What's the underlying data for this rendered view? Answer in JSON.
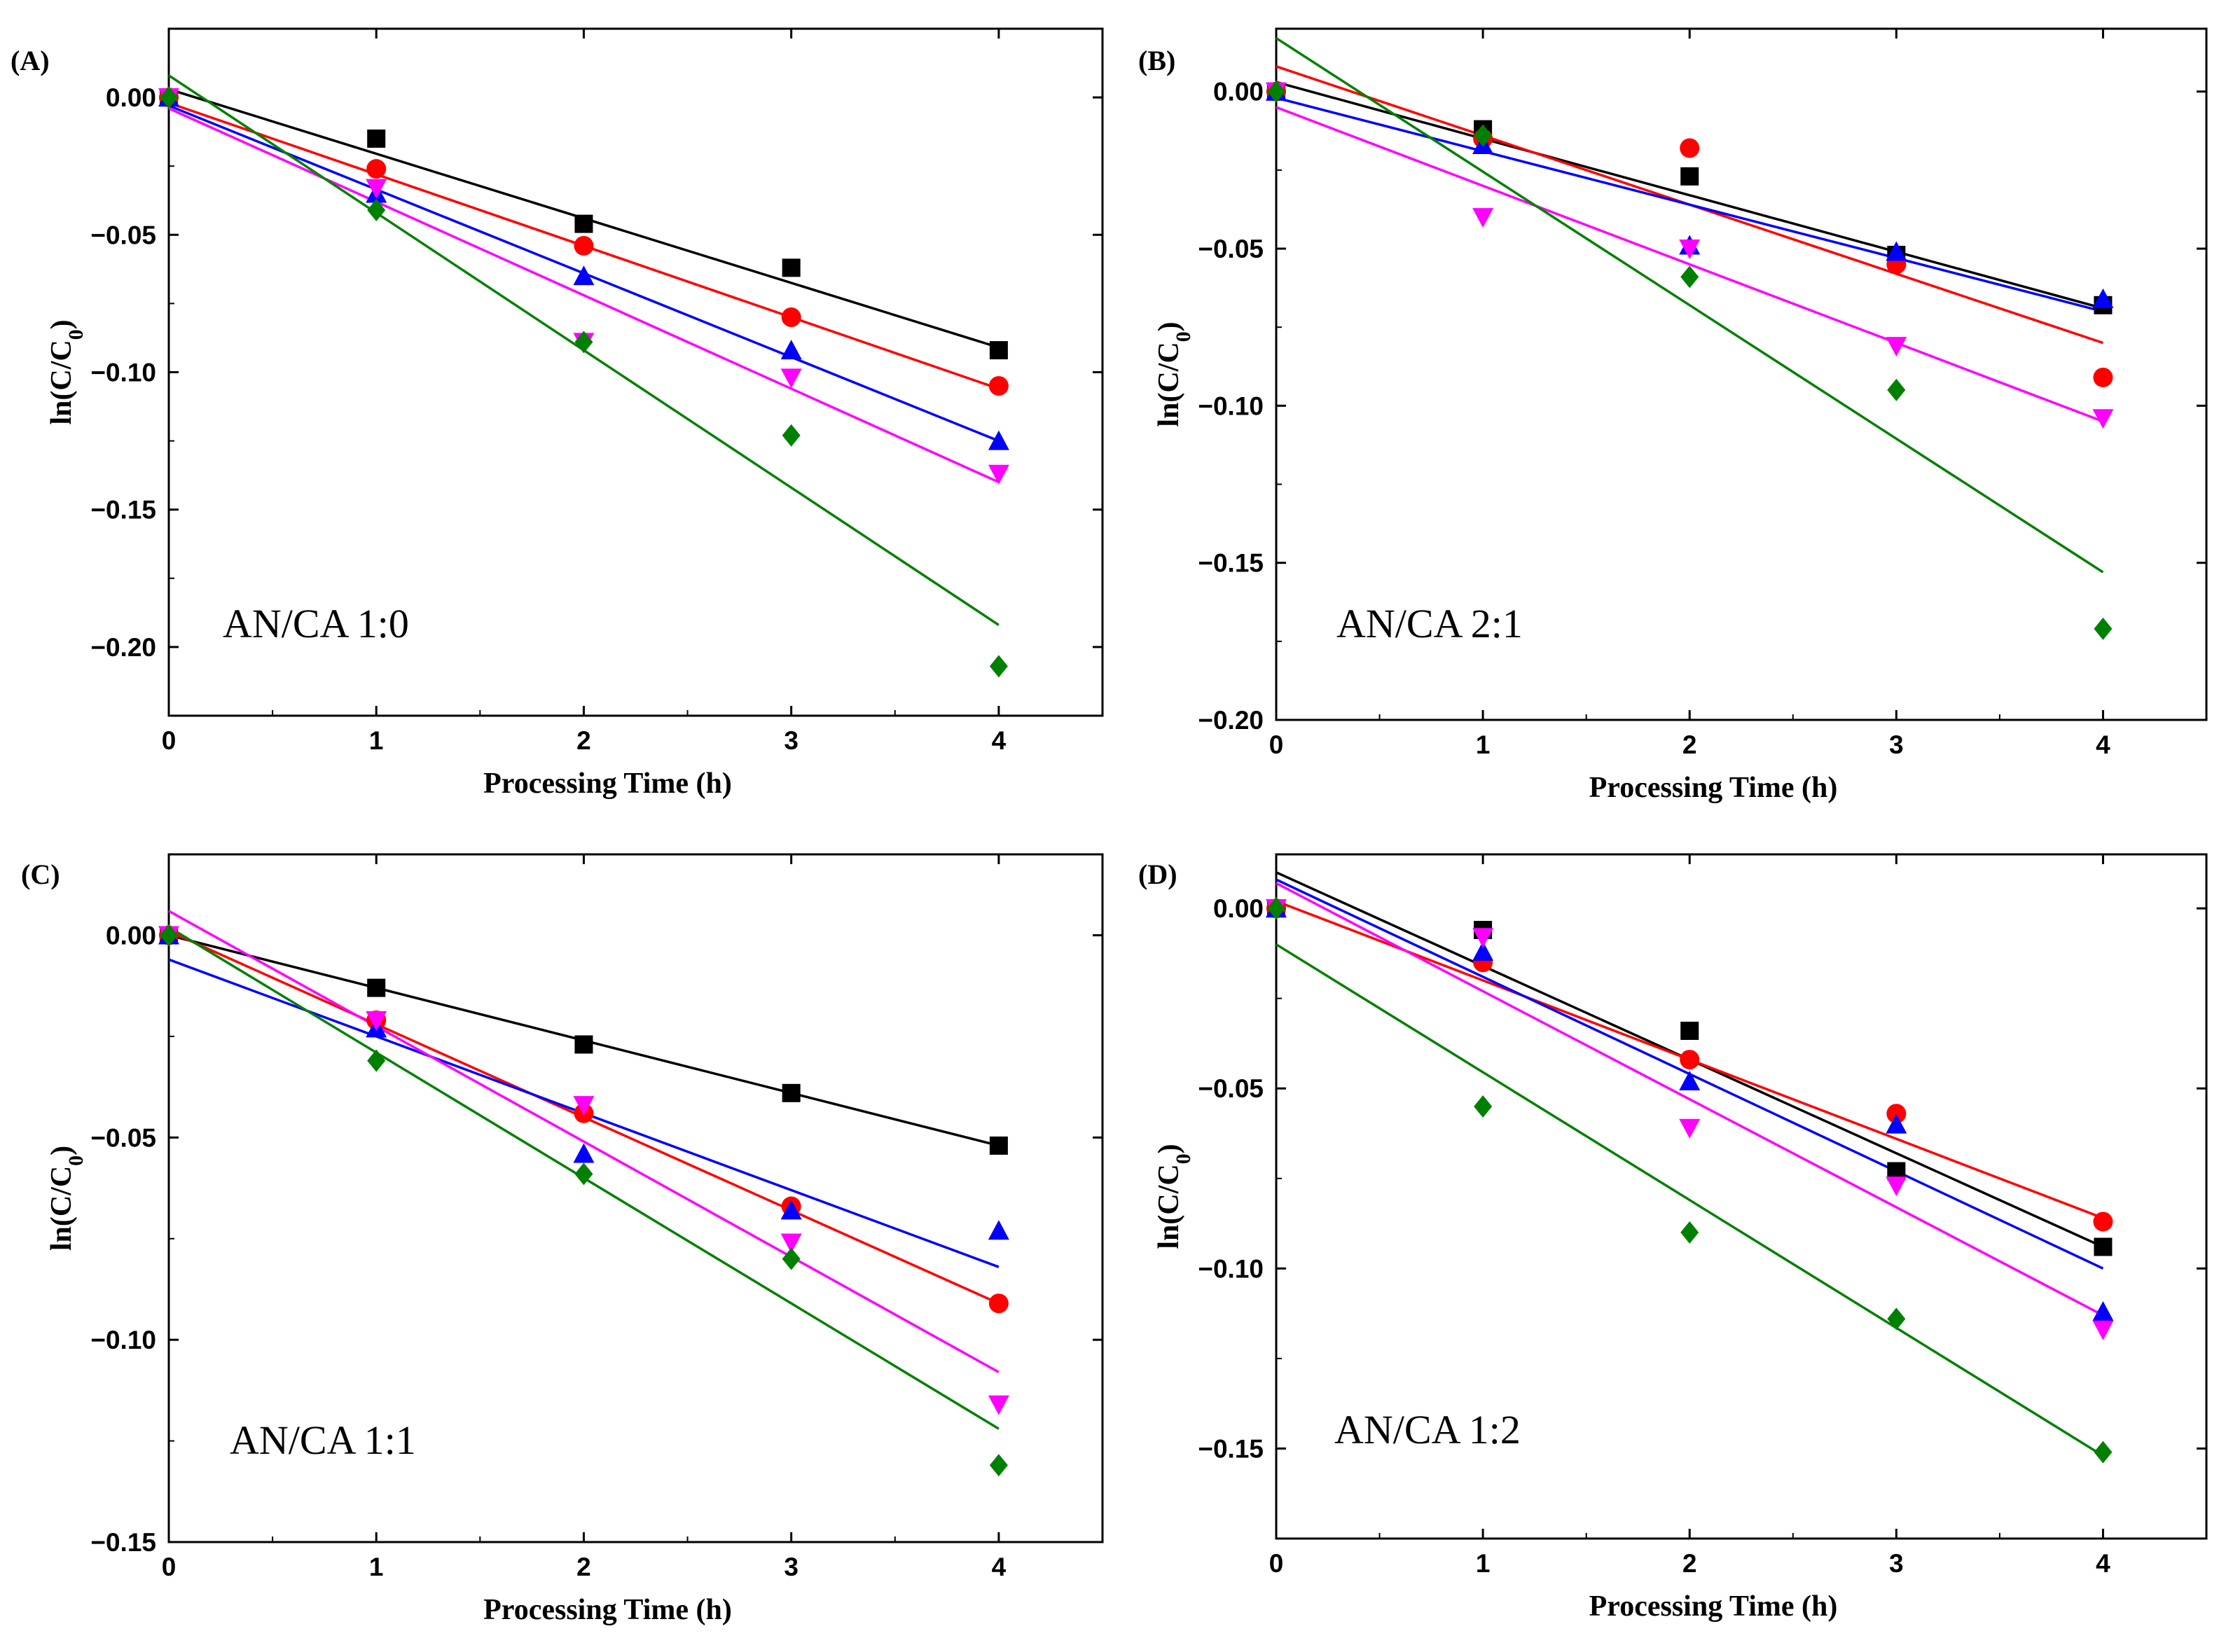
{
  "figure": {
    "x_label": "Processing Time (h)",
    "y_label_main": "ln(C/C",
    "y_label_sub": "0",
    "y_label_end": ")"
  },
  "series_colors": [
    "#000000",
    "#ff0000",
    "#0000ff",
    "#ff00ff",
    "#008000"
  ],
  "marker_shapes": [
    "square",
    "circle",
    "triangle-up",
    "triangle-down",
    "diamond"
  ],
  "chart_data": [
    {
      "type": "scatter",
      "panel_label": "(A)",
      "annotation": "AN/CA 1:0",
      "xlabel": "Processing Time (h)",
      "ylabel": "ln(C/C0)",
      "xlim": [
        0,
        4.5
      ],
      "ylim": [
        -0.225,
        0.025
      ],
      "xticks": [
        0,
        1,
        2,
        3,
        4
      ],
      "yticks": [
        0.0,
        -0.05,
        -0.1,
        -0.15,
        -0.2
      ],
      "ytick_labels": [
        "0.00",
        "-0.05",
        "-0.10",
        "-0.15",
        "-0.20"
      ],
      "x": [
        0,
        1,
        2,
        3,
        4
      ],
      "series": [
        {
          "values": [
            0,
            -0.015,
            -0.046,
            -0.062,
            -0.092
          ],
          "fit": [
            0.003,
            -0.0235
          ]
        },
        {
          "values": [
            0,
            -0.026,
            -0.054,
            -0.08,
            -0.105
          ],
          "fit": [
            -0.002,
            -0.026
          ]
        },
        {
          "values": [
            0,
            -0.035,
            -0.065,
            -0.092,
            -0.125
          ],
          "fit": [
            -0.003,
            -0.0305
          ]
        },
        {
          "values": [
            0,
            -0.033,
            -0.089,
            -0.102,
            -0.137
          ],
          "fit": [
            -0.004,
            -0.034
          ]
        },
        {
          "values": [
            0,
            -0.041,
            -0.089,
            -0.123,
            -0.207
          ],
          "fit": [
            0.008,
            -0.05
          ]
        }
      ]
    },
    {
      "type": "scatter",
      "panel_label": "(B)",
      "annotation": "AN/CA 2:1",
      "xlabel": "Processing Time (h)",
      "ylabel": "ln(C/C0)",
      "xlim": [
        0,
        4.5
      ],
      "ylim": [
        -0.2,
        0.02
      ],
      "xticks": [
        0,
        1,
        2,
        3,
        4
      ],
      "yticks": [
        0.0,
        -0.05,
        -0.1,
        -0.15,
        -0.2
      ],
      "ytick_labels": [
        "0.00",
        "-0.05",
        "-0.10",
        "-0.15",
        "-0.20"
      ],
      "x": [
        0,
        1,
        2,
        3,
        4
      ],
      "series": [
        {
          "values": [
            0,
            -0.012,
            -0.027,
            -0.052,
            -0.068
          ],
          "fit": [
            0.003,
            -0.018
          ]
        },
        {
          "values": [
            0,
            -0.015,
            -0.018,
            -0.055,
            -0.091
          ],
          "fit": [
            0.008,
            -0.022
          ]
        },
        {
          "values": [
            0,
            -0.017,
            -0.049,
            -0.051,
            -0.066
          ],
          "fit": [
            -0.002,
            -0.017
          ]
        },
        {
          "values": [
            0,
            -0.04,
            -0.05,
            -0.081,
            -0.104
          ],
          "fit": [
            -0.005,
            -0.025
          ]
        },
        {
          "values": [
            0,
            -0.014,
            -0.059,
            -0.095,
            -0.171
          ],
          "fit": [
            0.017,
            -0.0425
          ]
        }
      ]
    },
    {
      "type": "scatter",
      "panel_label": "(C)",
      "annotation": "AN/CA 1:1",
      "xlabel": "Processing Time (h)",
      "ylabel": "ln(C/C0)",
      "xlim": [
        0,
        4.5
      ],
      "ylim": [
        -0.15,
        0.02
      ],
      "xticks": [
        0,
        1,
        2,
        3,
        4
      ],
      "yticks": [
        0.0,
        -0.05,
        -0.1,
        -0.15
      ],
      "ytick_labels": [
        "0.00",
        "-0.05",
        "-0.10",
        "-0.15"
      ],
      "x": [
        0,
        1,
        2,
        3,
        4
      ],
      "series": [
        {
          "values": [
            0,
            -0.013,
            -0.027,
            -0.039,
            -0.052
          ],
          "fit": [
            0.0,
            -0.013
          ]
        },
        {
          "values": [
            0,
            -0.021,
            -0.044,
            -0.067,
            -0.091
          ],
          "fit": [
            0.001,
            -0.023
          ]
        },
        {
          "values": [
            0,
            -0.023,
            -0.054,
            -0.068,
            -0.073
          ],
          "fit": [
            -0.006,
            -0.019
          ]
        },
        {
          "values": [
            0,
            -0.021,
            -0.042,
            -0.076,
            -0.116
          ],
          "fit": [
            0.006,
            -0.0285
          ]
        },
        {
          "values": [
            0,
            -0.031,
            -0.059,
            -0.08,
            -0.131
          ],
          "fit": [
            0.002,
            -0.031
          ]
        }
      ]
    },
    {
      "type": "scatter",
      "panel_label": "(D)",
      "annotation": "AN/CA 1:2",
      "xlabel": "Processing Time (h)",
      "ylabel": "ln(C/C0)",
      "xlim": [
        0,
        4.5
      ],
      "ylim": [
        -0.175,
        0.015
      ],
      "xticks": [
        0,
        1,
        2,
        3,
        4
      ],
      "yticks": [
        0.0,
        -0.05,
        -0.1,
        -0.15
      ],
      "ytick_labels": [
        "0.00",
        "-0.05",
        "-0.10",
        "-0.15"
      ],
      "x": [
        0,
        1,
        2,
        3,
        4
      ],
      "series": [
        {
          "values": [
            0,
            -0.006,
            -0.034,
            -0.073,
            -0.094
          ],
          "fit": [
            0.01,
            -0.026
          ]
        },
        {
          "values": [
            0,
            -0.015,
            -0.042,
            -0.057,
            -0.087
          ],
          "fit": [
            0.002,
            -0.022
          ]
        },
        {
          "values": [
            0,
            -0.012,
            -0.048,
            -0.06,
            -0.112
          ],
          "fit": [
            0.008,
            -0.027
          ]
        },
        {
          "values": [
            0,
            -0.008,
            -0.061,
            -0.077,
            -0.117
          ],
          "fit": [
            0.007,
            -0.03
          ]
        },
        {
          "values": [
            0,
            -0.055,
            -0.09,
            -0.114,
            -0.151
          ],
          "fit": [
            -0.01,
            -0.0355
          ]
        }
      ]
    }
  ]
}
